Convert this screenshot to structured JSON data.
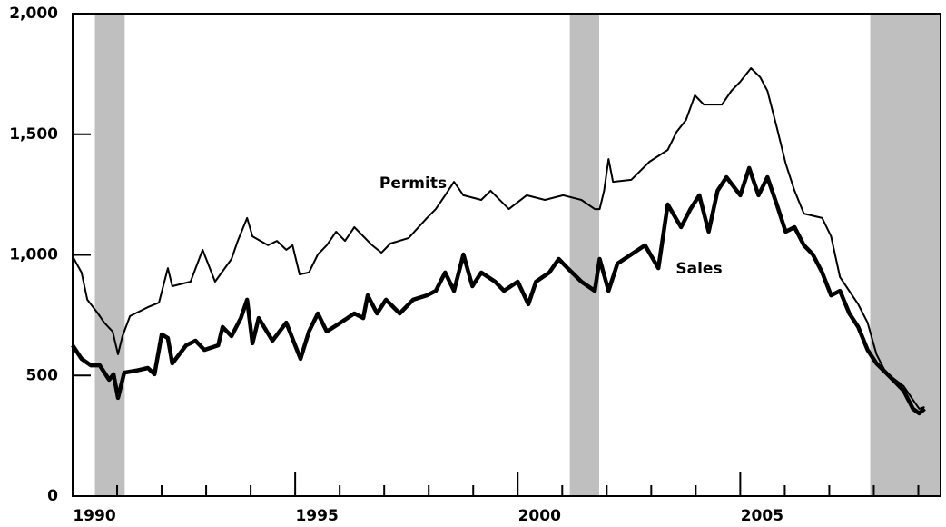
{
  "chart_data": {
    "type": "line",
    "annotations": [
      {
        "text": "Permits"
      },
      {
        "text": "Sales"
      }
    ],
    "xlim": [
      1990,
      2009.5
    ],
    "ylim": [
      0,
      2000
    ],
    "xticks": [
      1990,
      1995,
      2000,
      2005
    ],
    "xminorticks": [
      1991,
      1992,
      1993,
      1994,
      1996,
      1997,
      1998,
      1999,
      2001,
      2002,
      2003,
      2004,
      2006,
      2007,
      2008,
      2009
    ],
    "yticks": [
      0,
      500,
      {
        "value": 1000,
        "label": "1,000"
      },
      {
        "value": 1500,
        "label": "1,500"
      },
      {
        "value": 2000,
        "label": "2,000"
      }
    ],
    "recessions": [
      [
        1990.5,
        1991.17
      ],
      [
        2001.17,
        2001.83
      ],
      [
        2007.92,
        2009.5
      ]
    ],
    "recession_color": "#bfbfbf",
    "series": [
      {
        "name": "Permits",
        "color": "#000000",
        "width": 2,
        "x": [
          1990.0,
          1990.2,
          1990.33,
          1990.57,
          1990.71,
          1990.9,
          1991.02,
          1991.12,
          1991.29,
          1991.69,
          1991.94,
          1992.14,
          1992.24,
          1992.65,
          1992.92,
          1993.2,
          1993.57,
          1993.71,
          1993.92,
          1994.04,
          1994.39,
          1994.59,
          1994.8,
          1994.94,
          1995.1,
          1995.31,
          1995.51,
          1995.71,
          1995.92,
          1996.12,
          1996.33,
          1996.73,
          1996.94,
          1997.14,
          1997.55,
          1997.96,
          1998.16,
          1998.37,
          1998.57,
          1998.78,
          1999.18,
          1999.39,
          1999.8,
          2000.2,
          2000.61,
          2001.02,
          2001.43,
          2001.73,
          2001.84,
          2001.94,
          2002.04,
          2002.14,
          2002.55,
          2002.96,
          2003.37,
          2003.57,
          2003.78,
          2003.98,
          2004.18,
          2004.59,
          2004.8,
          2005.0,
          2005.24,
          2005.45,
          2005.61,
          2005.82,
          2006.02,
          2006.22,
          2006.43,
          2006.84,
          2007.04,
          2007.24,
          2007.65,
          2007.86,
          2008.06,
          2008.27,
          2008.67,
          2008.88,
          2009.02,
          2009.14
        ],
        "values": [
          994,
          927,
          814,
          757,
          719,
          682,
          588,
          663,
          746,
          783,
          802,
          945,
          870,
          889,
          1021,
          889,
          983,
          1058,
          1153,
          1077,
          1040,
          1058,
          1021,
          1040,
          919,
          927,
          1002,
          1040,
          1096,
          1058,
          1115,
          1040,
          1009,
          1047,
          1070,
          1153,
          1190,
          1247,
          1303,
          1247,
          1228,
          1266,
          1190,
          1247,
          1228,
          1247,
          1228,
          1190,
          1190,
          1266,
          1397,
          1303,
          1311,
          1386,
          1435,
          1510,
          1559,
          1661,
          1623,
          1623,
          1680,
          1718,
          1774,
          1736,
          1680,
          1529,
          1379,
          1266,
          1171,
          1153,
          1077,
          908,
          795,
          719,
          588,
          512,
          456,
          399,
          362,
          369
        ]
      },
      {
        "name": "Sales",
        "color": "#000000",
        "width": 4.5,
        "x": [
          1990.0,
          1990.2,
          1990.41,
          1990.61,
          1990.82,
          1990.92,
          1991.02,
          1991.16,
          1991.43,
          1991.69,
          1991.84,
          1992.0,
          1992.14,
          1992.24,
          1992.55,
          1992.76,
          1992.96,
          1993.27,
          1993.37,
          1993.57,
          1993.78,
          1993.92,
          1994.04,
          1994.18,
          1994.49,
          1994.8,
          1995.0,
          1995.12,
          1995.31,
          1995.51,
          1995.71,
          1996.02,
          1996.33,
          1996.53,
          1996.63,
          1996.84,
          1997.04,
          1997.35,
          1997.65,
          1997.96,
          1998.16,
          1998.37,
          1998.57,
          1998.78,
          1998.98,
          1999.18,
          1999.49,
          1999.69,
          2000.0,
          2000.24,
          2000.41,
          2000.71,
          2000.92,
          2001.12,
          2001.43,
          2001.73,
          2001.84,
          2002.04,
          2002.24,
          2002.55,
          2002.86,
          2003.16,
          2003.37,
          2003.67,
          2003.88,
          2004.08,
          2004.29,
          2004.49,
          2004.69,
          2005.0,
          2005.2,
          2005.41,
          2005.61,
          2005.82,
          2006.02,
          2006.22,
          2006.43,
          2006.63,
          2006.84,
          2007.04,
          2007.24,
          2007.45,
          2007.65,
          2007.86,
          2008.06,
          2008.27,
          2008.47,
          2008.67,
          2008.88,
          2009.02,
          2009.14
        ],
        "values": [
          625,
          569,
          542,
          542,
          482,
          505,
          407,
          512,
          520,
          531,
          505,
          670,
          655,
          550,
          625,
          644,
          606,
          625,
          701,
          663,
          738,
          814,
          633,
          738,
          644,
          719,
          625,
          569,
          682,
          757,
          682,
          719,
          757,
          738,
          832,
          757,
          814,
          757,
          814,
          832,
          851,
          927,
          851,
          1002,
          870,
          927,
          889,
          851,
          889,
          795,
          889,
          927,
          983,
          945,
          889,
          851,
          983,
          851,
          964,
          1002,
          1040,
          945,
          1209,
          1115,
          1190,
          1247,
          1096,
          1266,
          1322,
          1247,
          1360,
          1247,
          1322,
          1209,
          1096,
          1115,
          1040,
          1002,
          927,
          832,
          851,
          757,
          701,
          606,
          550,
          512,
          475,
          437,
          362,
          343,
          362
        ]
      }
    ]
  }
}
